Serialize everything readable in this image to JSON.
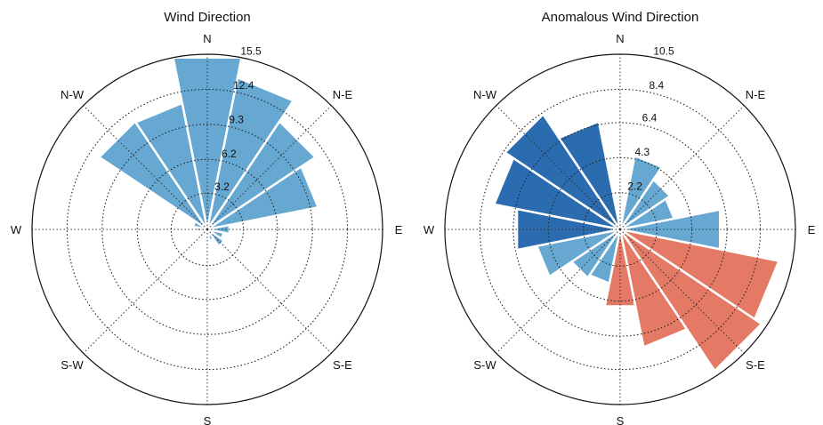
{
  "chart_data": [
    {
      "type": "polar-bar",
      "title": "Wind Direction",
      "directions": [
        "N",
        "N-E",
        "E",
        "S-E",
        "S",
        "S-W",
        "W",
        "N-W"
      ],
      "rmax": 15.5,
      "rticks": [
        3.2,
        6.2,
        9.3,
        12.4,
        15.5
      ],
      "bins": 16,
      "sector_angles_deg": [
        0,
        22.5,
        45,
        67.5,
        90,
        112.5,
        135,
        157.5,
        180,
        202.5,
        225,
        247.5,
        270,
        292.5,
        315,
        337.5
      ],
      "values": [
        15.5,
        13.7,
        11.5,
        10.0,
        2.0,
        1.5,
        1.8,
        1.0,
        0.5,
        0.4,
        0.4,
        0.4,
        1.0,
        1.3,
        11.5,
        11.4
      ],
      "colors": [
        "#66a8d1",
        "#66a8d1",
        "#66a8d1",
        "#66a8d1",
        "#66a8d1",
        "#66a8d1",
        "#66a8d1",
        "#66a8d1",
        "#66a8d1",
        "#66a8d1",
        "#66a8d1",
        "#66a8d1",
        "#66a8d1",
        "#66a8d1",
        "#66a8d1",
        "#66a8d1"
      ],
      "grid": true
    },
    {
      "type": "polar-bar",
      "title": "Anomalous Wind Direction",
      "directions": [
        "N",
        "N-E",
        "E",
        "S-E",
        "S",
        "S-W",
        "W",
        "N-W"
      ],
      "rmax": 10.5,
      "rticks": [
        2.2,
        4.3,
        6.4,
        8.4,
        10.5
      ],
      "bins": 16,
      "sector_angles_deg": [
        0,
        22.5,
        45,
        67.5,
        90,
        112.5,
        135,
        157.5,
        180,
        202.5,
        225,
        247.5,
        270,
        292.5,
        315,
        337.5
      ],
      "values": [
        0,
        4.5,
        3.6,
        3.3,
        6.1,
        9.7,
        10.2,
        7.2,
        4.7,
        3.3,
        3.5,
        5.1,
        6.3,
        7.7,
        8.3,
        6.6
      ],
      "colors": [
        "#66a8d1",
        "#66a8d1",
        "#66a8d1",
        "#66a8d1",
        "#66a8d1",
        "#e47a66",
        "#e47a66",
        "#e47a66",
        "#e47a66",
        "#66a8d1",
        "#66a8d1",
        "#66a8d1",
        "#2b6cb0",
        "#2b6cb0",
        "#2b6cb0",
        "#2b6cb0"
      ],
      "grid": true
    }
  ]
}
